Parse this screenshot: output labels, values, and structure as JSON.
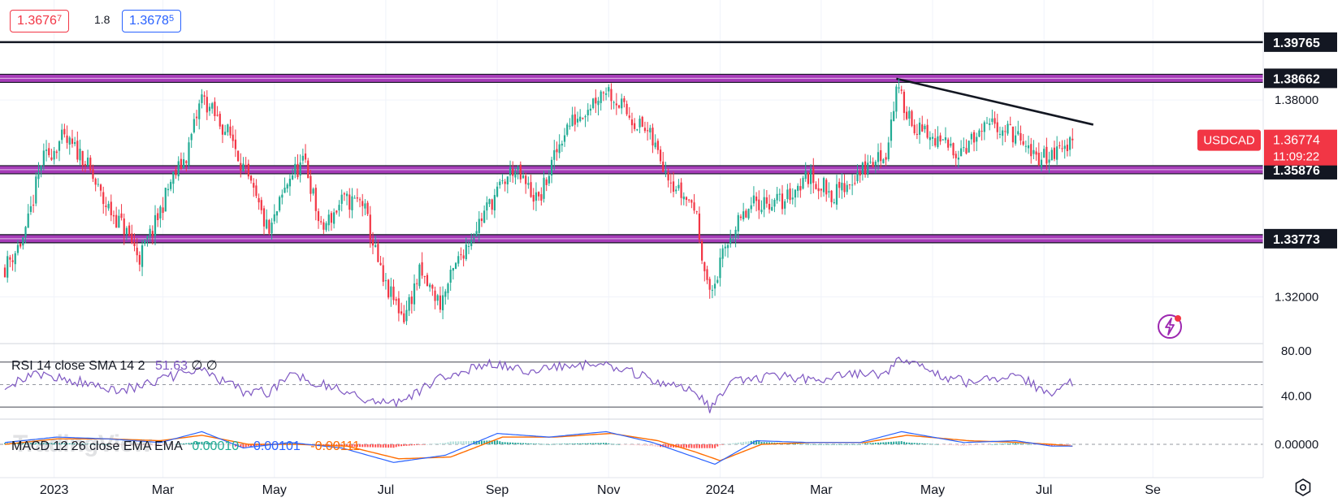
{
  "header": {
    "bid": "1.3676",
    "bid_sup": "7",
    "spread": "1.8",
    "ask": "1.3678",
    "ask_sup": "5"
  },
  "watermark": "TradingView",
  "symbol": "USDCAD",
  "last_price": "1.36774",
  "countdown": "11:09:22",
  "colors": {
    "up": "#22ab94",
    "down": "#f23645",
    "level_band": "#9c27b0",
    "rsi": "#7e57c2",
    "macd": "#2962ff",
    "signal": "#ff6d00",
    "grid": "#f0f3fa"
  },
  "chart_data": {
    "type": "candlestick",
    "symbol": "USDCAD",
    "ylim": [
      1.306,
      1.41
    ],
    "y_ticks": [
      "1.38000",
      "1.32000"
    ],
    "x_labels": [
      "2023",
      "Mar",
      "May",
      "Jul",
      "Sep",
      "Nov",
      "2024",
      "Mar",
      "May",
      "Jul",
      "Se"
    ],
    "x_label_index": [
      19,
      61,
      104,
      147,
      190,
      233,
      276,
      315,
      358,
      401,
      443
    ],
    "horizontal_levels": [
      {
        "price": 1.39765,
        "label": "1.39765",
        "style": "line"
      },
      {
        "price": 1.38662,
        "label": "1.38662",
        "style": "band"
      },
      {
        "price": 1.35876,
        "label": "1.35876",
        "style": "band"
      },
      {
        "price": 1.33773,
        "label": "1.33773",
        "style": "band"
      }
    ],
    "trendline": [
      {
        "index": 344,
        "price": 1.3865
      },
      {
        "index": 420,
        "price": 1.3725
      }
    ],
    "close_path": [
      [
        0,
        1.329
      ],
      [
        8,
        1.339
      ],
      [
        14,
        1.361
      ],
      [
        22,
        1.368
      ],
      [
        30,
        1.363
      ],
      [
        38,
        1.349
      ],
      [
        46,
        1.341
      ],
      [
        52,
        1.332
      ],
      [
        58,
        1.342
      ],
      [
        64,
        1.355
      ],
      [
        70,
        1.363
      ],
      [
        76,
        1.381
      ],
      [
        82,
        1.374
      ],
      [
        88,
        1.368
      ],
      [
        94,
        1.355
      ],
      [
        102,
        1.339
      ],
      [
        110,
        1.357
      ],
      [
        116,
        1.361
      ],
      [
        122,
        1.34
      ],
      [
        130,
        1.349
      ],
      [
        138,
        1.349
      ],
      [
        146,
        1.324
      ],
      [
        154,
        1.314
      ],
      [
        160,
        1.327
      ],
      [
        168,
        1.318
      ],
      [
        176,
        1.333
      ],
      [
        186,
        1.347
      ],
      [
        196,
        1.359
      ],
      [
        206,
        1.349
      ],
      [
        216,
        1.371
      ],
      [
        232,
        1.384
      ],
      [
        240,
        1.376
      ],
      [
        248,
        1.37
      ],
      [
        260,
        1.352
      ],
      [
        266,
        1.348
      ],
      [
        272,
        1.32
      ],
      [
        280,
        1.339
      ],
      [
        290,
        1.349
      ],
      [
        300,
        1.349
      ],
      [
        310,
        1.357
      ],
      [
        320,
        1.351
      ],
      [
        330,
        1.358
      ],
      [
        340,
        1.364
      ],
      [
        344,
        1.383
      ],
      [
        352,
        1.371
      ],
      [
        360,
        1.367
      ],
      [
        368,
        1.365
      ],
      [
        376,
        1.369
      ],
      [
        382,
        1.373
      ],
      [
        390,
        1.369
      ],
      [
        396,
        1.363
      ],
      [
        402,
        1.363
      ],
      [
        410,
        1.366
      ],
      [
        412,
        1.3677
      ]
    ],
    "rsi": {
      "name": "RSI 14 close SMA 14 2",
      "values_label": "51.63",
      "extra": [
        "∅",
        "∅"
      ],
      "y_ticks": [
        "80.00",
        "40.00"
      ],
      "ylim": [
        20,
        85
      ],
      "bands": [
        70,
        30
      ],
      "mid": 50,
      "path": [
        [
          0,
          50
        ],
        [
          14,
          59
        ],
        [
          30,
          52
        ],
        [
          46,
          45
        ],
        [
          60,
          55
        ],
        [
          76,
          63
        ],
        [
          92,
          44
        ],
        [
          102,
          43
        ],
        [
          110,
          60
        ],
        [
          126,
          48
        ],
        [
          144,
          33
        ],
        [
          154,
          36
        ],
        [
          170,
          58
        ],
        [
          186,
          68
        ],
        [
          206,
          62
        ],
        [
          218,
          68
        ],
        [
          232,
          67
        ],
        [
          250,
          55
        ],
        [
          266,
          44
        ],
        [
          272,
          29
        ],
        [
          282,
          54
        ],
        [
          298,
          57
        ],
        [
          312,
          55
        ],
        [
          328,
          59
        ],
        [
          340,
          60
        ],
        [
          344,
          73
        ],
        [
          360,
          59
        ],
        [
          372,
          51
        ],
        [
          390,
          60
        ],
        [
          404,
          40
        ],
        [
          412,
          52
        ]
      ]
    },
    "macd": {
      "name": "MACD 12 26 close EMA EMA",
      "values": [
        "0.00010",
        "-0.00101",
        "-0.00111"
      ],
      "y_ticks": [
        "0.00000"
      ],
      "ylim": [
        -0.013,
        0.013
      ],
      "macd_path": [
        [
          0,
          0.001
        ],
        [
          20,
          0.004
        ],
        [
          40,
          0.003
        ],
        [
          60,
          0.001
        ],
        [
          76,
          0.007
        ],
        [
          92,
          -0.002
        ],
        [
          110,
          0.001
        ],
        [
          130,
          -0.002
        ],
        [
          150,
          -0.01
        ],
        [
          170,
          -0.006
        ],
        [
          190,
          0.006
        ],
        [
          210,
          0.004
        ],
        [
          232,
          0.007
        ],
        [
          250,
          0.001
        ],
        [
          264,
          -0.006
        ],
        [
          274,
          -0.011
        ],
        [
          290,
          0.002
        ],
        [
          310,
          0.001
        ],
        [
          330,
          0.001
        ],
        [
          346,
          0.007
        ],
        [
          370,
          0.001
        ],
        [
          390,
          0.002
        ],
        [
          404,
          -0.001
        ],
        [
          412,
          -0.001
        ]
      ],
      "signal_path": [
        [
          0,
          0.0
        ],
        [
          20,
          0.003
        ],
        [
          40,
          0.003
        ],
        [
          60,
          0.002
        ],
        [
          76,
          0.005
        ],
        [
          94,
          0.0
        ],
        [
          112,
          0.0
        ],
        [
          132,
          -0.001
        ],
        [
          152,
          -0.008
        ],
        [
          172,
          -0.007
        ],
        [
          192,
          0.004
        ],
        [
          212,
          0.004
        ],
        [
          234,
          0.006
        ],
        [
          252,
          0.002
        ],
        [
          266,
          -0.004
        ],
        [
          276,
          -0.009
        ],
        [
          292,
          0.0
        ],
        [
          312,
          0.001
        ],
        [
          332,
          0.001
        ],
        [
          348,
          0.005
        ],
        [
          372,
          0.002
        ],
        [
          392,
          0.001
        ],
        [
          404,
          0.0
        ],
        [
          412,
          -0.001
        ]
      ]
    }
  }
}
